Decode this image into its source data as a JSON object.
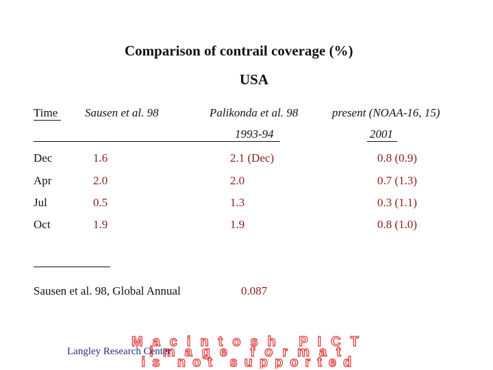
{
  "title": "Comparison of contrail coverage (%)",
  "subtitle": "USA",
  "headers": {
    "time": "Time",
    "col1": "Sausen et al. 98",
    "col2": "Palikonda et al. 98",
    "col2_years": "1993-94",
    "col3": "present (NOAA-16, 15)",
    "col3_years": "2001"
  },
  "rows": [
    {
      "time": "Dec",
      "sausen": "1.6",
      "palikonda": "2.1 (Dec)",
      "present": "0.8 (0.9)"
    },
    {
      "time": "Apr",
      "sausen": "2.0",
      "palikonda": "2.0",
      "present": "0.7 (1.3)"
    },
    {
      "time": "Jul",
      "sausen": "0.5",
      "palikonda": "1.3",
      "present": "0.3  (1.1)"
    },
    {
      "time": "Oct",
      "sausen": "1.9",
      "palikonda": "1.9",
      "present": "0.8  (1.0)"
    }
  ],
  "global": {
    "label": "Sausen et al. 98, Global Annual",
    "value": "0.087"
  },
  "watermark": {
    "line1": "Macintosh PICT",
    "line2": "image format",
    "line3": "is not supported",
    "color": "#e03030"
  },
  "credit": "Langley Research Center"
}
